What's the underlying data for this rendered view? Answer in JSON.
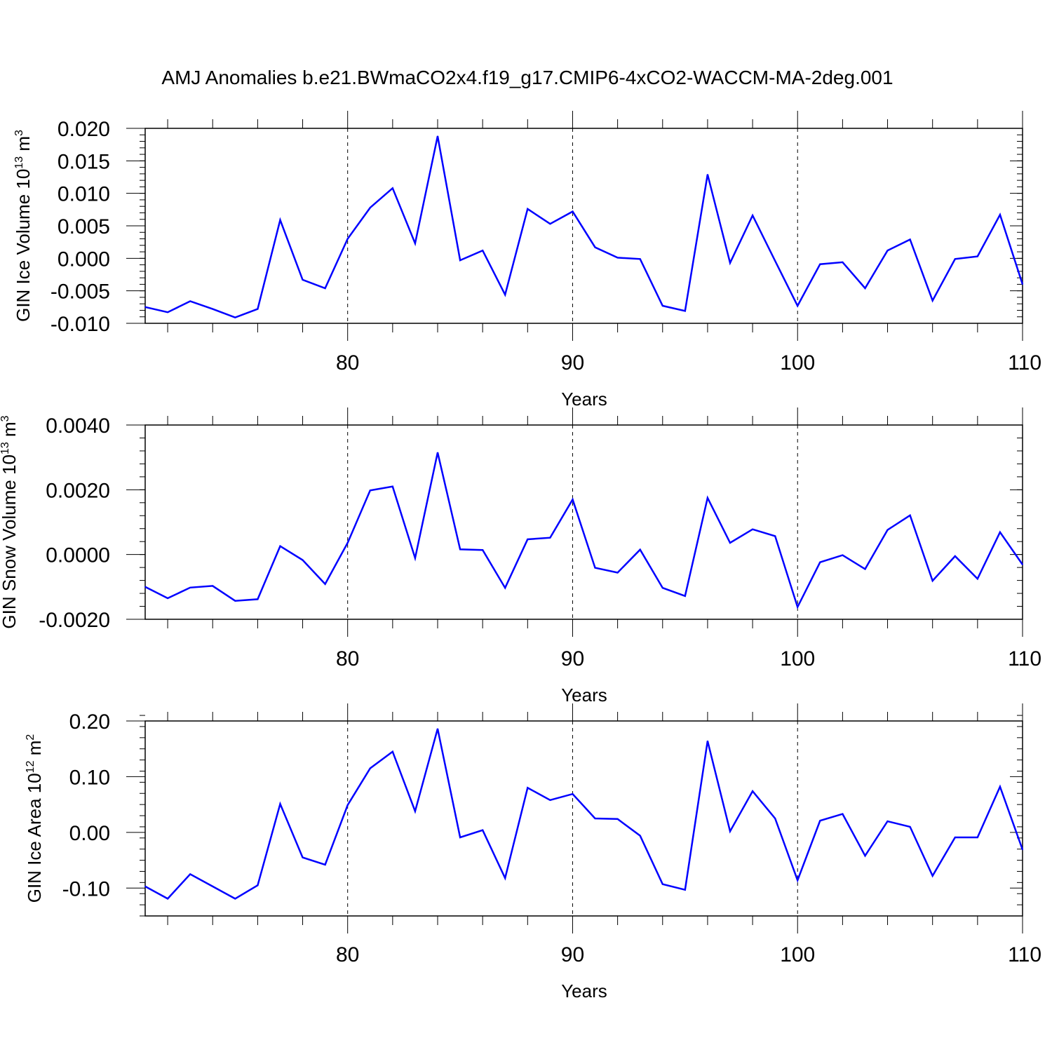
{
  "figure": {
    "title": "AMJ Anomalies b.e21.BWmaCO2x4.f19_g17.CMIP6-4xCO2-WACCM-MA-2deg.001",
    "line_color": "#0000ff"
  },
  "chart_data": [
    {
      "type": "line",
      "xlabel": "Years",
      "ylabel": "GIN Ice Volume 10",
      "ylabel_sup1": "13",
      "ylabel_unit": "m",
      "ylabel_sup2": "3",
      "xlim": [
        71,
        110
      ],
      "ylim": [
        -0.01,
        0.02
      ],
      "x_ticks": [
        80,
        90,
        100,
        110
      ],
      "x_tick_labels": [
        "80",
        "90",
        "100",
        "110"
      ],
      "y_ticks": [
        -0.01,
        -0.005,
        0.0,
        0.005,
        0.01,
        0.015,
        0.02
      ],
      "y_tick_labels": [
        "-0.010",
        "-0.005",
        "0.000",
        "0.005",
        "0.010",
        "0.015",
        "0.020"
      ],
      "grid": "vertical dashed at 80, 90, 100",
      "x": [
        71,
        72,
        73,
        74,
        75,
        76,
        77,
        78,
        79,
        80,
        81,
        82,
        83,
        84,
        85,
        86,
        87,
        88,
        89,
        90,
        91,
        92,
        93,
        94,
        95,
        96,
        97,
        98,
        99,
        100,
        101,
        102,
        103,
        104,
        105,
        106,
        107,
        108,
        109,
        110
      ],
      "series": [
        {
          "values": [
            -0.0075,
            -0.0083,
            -0.0066,
            -0.0078,
            -0.0091,
            -0.0078,
            0.0059,
            -0.0033,
            -0.0046,
            0.003,
            0.0078,
            0.0108,
            0.0023,
            0.0188,
            -0.0003,
            0.0012,
            -0.0056,
            0.0076,
            0.0053,
            0.0072,
            0.0017,
            0.0001,
            -0.0001,
            -0.0073,
            -0.0081,
            0.0129,
            -0.0007,
            0.0066,
            -0.0004,
            -0.0073,
            -0.0009,
            -0.0006,
            -0.0046,
            0.0012,
            0.0029,
            -0.0065,
            -0.0001,
            0.0003,
            0.0067,
            -0.004
          ]
        }
      ]
    },
    {
      "type": "line",
      "xlabel": "Years",
      "ylabel": "GIN Snow Volume 10",
      "ylabel_sup1": "13",
      "ylabel_unit": "m",
      "ylabel_sup2": "3",
      "xlim": [
        71,
        110
      ],
      "ylim": [
        -0.002,
        0.004
      ],
      "x_ticks": [
        80,
        90,
        100,
        110
      ],
      "x_tick_labels": [
        "80",
        "90",
        "100",
        "110"
      ],
      "y_ticks": [
        -0.002,
        0.0,
        0.002,
        0.004
      ],
      "y_tick_labels": [
        "-0.0020",
        "0.0000",
        "0.0020",
        "0.0040"
      ],
      "grid": "vertical dashed at 80, 90, 100",
      "x": [
        71,
        72,
        73,
        74,
        75,
        76,
        77,
        78,
        79,
        80,
        81,
        82,
        83,
        84,
        85,
        86,
        87,
        88,
        89,
        90,
        91,
        92,
        93,
        94,
        95,
        96,
        97,
        98,
        99,
        100,
        101,
        102,
        103,
        104,
        105,
        106,
        107,
        108,
        109,
        110
      ],
      "series": [
        {
          "values": [
            -0.001,
            -0.00135,
            -0.00102,
            -0.00097,
            -0.00143,
            -0.00138,
            0.00026,
            -0.00017,
            -0.00091,
            0.00036,
            0.00198,
            0.0021,
            -0.00011,
            0.00315,
            0.00016,
            0.00014,
            -0.00103,
            0.00047,
            0.00052,
            0.0017,
            -0.00041,
            -0.00056,
            0.00015,
            -0.00103,
            -0.00128,
            0.00175,
            0.00036,
            0.00078,
            0.00057,
            -0.00162,
            -0.00024,
            -2e-05,
            -0.00045,
            0.00076,
            0.00121,
            -0.00081,
            -5e-05,
            -0.00075,
            0.00069,
            -0.00031
          ]
        }
      ]
    },
    {
      "type": "line",
      "xlabel": "Years",
      "ylabel": "GIN Ice Area 10",
      "ylabel_sup1": "12",
      "ylabel_unit": "m",
      "ylabel_sup2": "2",
      "xlim": [
        71,
        110
      ],
      "ylim": [
        -0.15,
        0.2
      ],
      "x_ticks": [
        80,
        90,
        100,
        110
      ],
      "x_tick_labels": [
        "80",
        "90",
        "100",
        "110"
      ],
      "y_ticks": [
        -0.1,
        0.0,
        0.1,
        0.2
      ],
      "y_tick_labels": [
        "-0.10",
        "0.00",
        "0.10",
        "0.20"
      ],
      "grid": "vertical dashed at 80, 90, 100",
      "x": [
        71,
        72,
        73,
        74,
        75,
        76,
        77,
        78,
        79,
        80,
        81,
        82,
        83,
        84,
        85,
        86,
        87,
        88,
        89,
        90,
        91,
        92,
        93,
        94,
        95,
        96,
        97,
        98,
        99,
        100,
        101,
        102,
        103,
        104,
        105,
        106,
        107,
        108,
        109,
        110
      ],
      "series": [
        {
          "values": [
            -0.097,
            -0.119,
            -0.075,
            -0.097,
            -0.119,
            -0.095,
            0.051,
            -0.045,
            -0.058,
            0.049,
            0.115,
            0.145,
            0.038,
            0.186,
            -0.009,
            0.004,
            -0.082,
            0.08,
            0.058,
            0.069,
            0.025,
            0.024,
            -0.006,
            -0.093,
            -0.103,
            0.164,
            0.002,
            0.074,
            0.025,
            -0.086,
            0.021,
            0.033,
            -0.042,
            0.02,
            0.01,
            -0.078,
            -0.009,
            -0.009,
            0.082,
            -0.031
          ]
        }
      ]
    }
  ]
}
